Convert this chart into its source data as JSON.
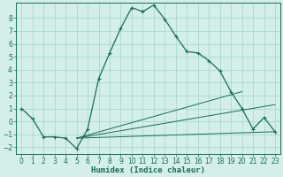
{
  "xlabel": "Humidex (Indice chaleur)",
  "bg_color": "#d4eeea",
  "grid_color": "#a8d8d0",
  "line_color": "#1a6b5a",
  "xlim": [
    -0.5,
    23.5
  ],
  "ylim": [
    -2.5,
    9.2
  ],
  "yticks": [
    -2,
    -1,
    0,
    1,
    2,
    3,
    4,
    5,
    6,
    7,
    8
  ],
  "xticks": [
    0,
    1,
    2,
    3,
    4,
    5,
    6,
    7,
    8,
    9,
    10,
    11,
    12,
    13,
    14,
    15,
    16,
    17,
    18,
    19,
    20,
    21,
    22,
    23
  ],
  "series1_x": [
    0,
    1,
    2,
    3,
    4,
    5,
    6,
    7,
    8,
    9,
    10,
    11,
    12,
    13,
    14,
    15,
    16,
    17,
    18,
    19,
    20,
    21,
    22,
    23
  ],
  "series1_y": [
    1,
    0.2,
    -1.2,
    -1.2,
    -1.3,
    -2.1,
    -0.6,
    3.3,
    5.3,
    7.2,
    8.8,
    8.5,
    9.0,
    7.9,
    6.6,
    5.4,
    5.3,
    4.7,
    3.9,
    2.3,
    1.0,
    -0.6,
    0.3,
    -0.8
  ],
  "series2_x": [
    5,
    23
  ],
  "series2_y": [
    -1.3,
    -0.8
  ],
  "series3_x": [
    5,
    20
  ],
  "series3_y": [
    -1.3,
    2.3
  ],
  "series4_x": [
    5,
    23
  ],
  "series4_y": [
    -1.3,
    1.3
  ]
}
